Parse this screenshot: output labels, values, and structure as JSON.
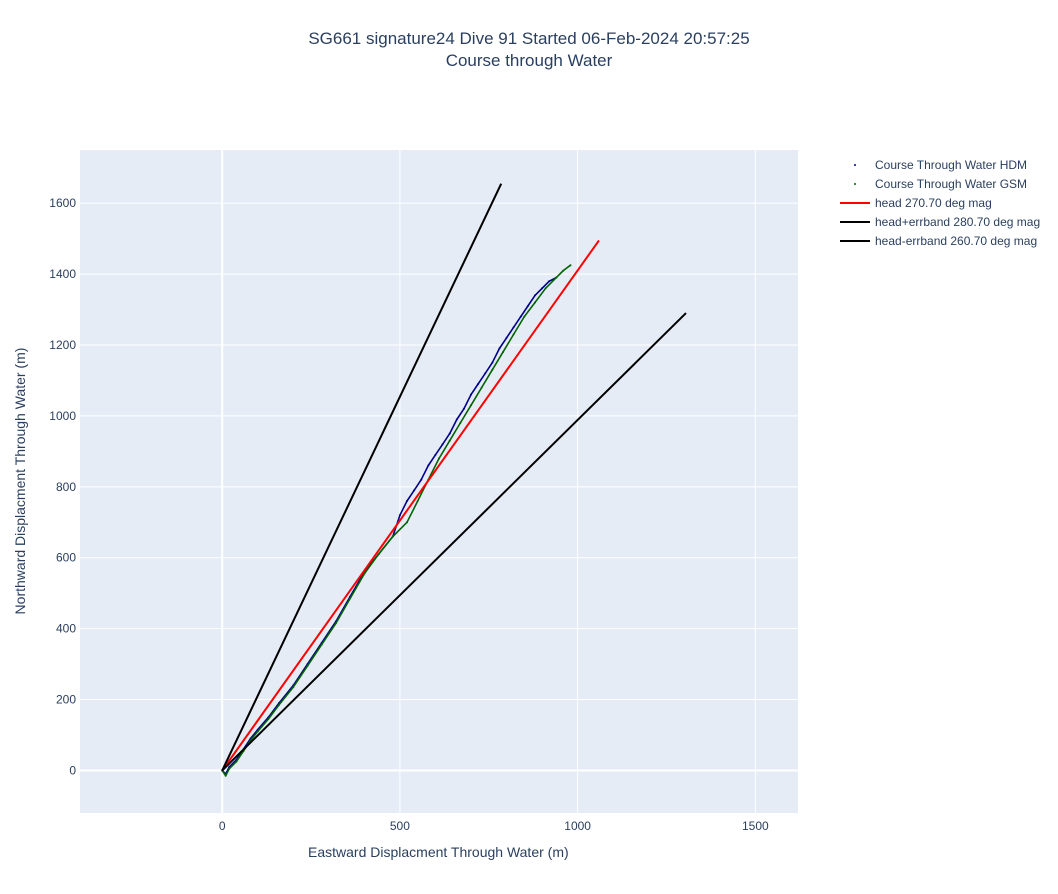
{
  "title": {
    "line1": "SG661 signature24 Dive 91 Started 06-Feb-2024 20:57:25",
    "line2": "Course through Water"
  },
  "chart_data": {
    "type": "scatter",
    "title": "SG661 signature24 Dive 91 Started 06-Feb-2024 20:57:25 / Course through Water",
    "xlabel": "Eastward Displacment Through Water (m)",
    "ylabel": "Northward Displacment Through Water (m)",
    "xlim": [
      -400,
      1620
    ],
    "ylim": [
      -120,
      1750
    ],
    "xticks": [
      0,
      500,
      1000,
      1500
    ],
    "yticks": [
      0,
      200,
      400,
      600,
      800,
      1000,
      1200,
      1400,
      1600
    ],
    "grid": true,
    "legend_position": "top-right",
    "series": [
      {
        "name": "Course Through Water HDM",
        "mode": "markers+path",
        "color": "#00008b",
        "x": [
          0,
          10,
          20,
          40,
          60,
          80,
          100,
          130,
          160,
          200,
          240,
          280,
          320,
          360,
          400,
          440,
          480,
          500,
          520,
          540,
          560,
          580,
          600,
          620,
          640,
          660,
          680,
          700,
          720,
          740,
          760,
          780,
          800,
          820,
          840,
          860,
          880,
          900,
          920,
          940
        ],
        "y": [
          0,
          -10,
          10,
          30,
          60,
          90,
          115,
          150,
          190,
          240,
          300,
          360,
          420,
          490,
          560,
          610,
          660,
          720,
          760,
          790,
          820,
          860,
          890,
          920,
          950,
          990,
          1020,
          1060,
          1090,
          1120,
          1150,
          1190,
          1220,
          1250,
          1280,
          1310,
          1340,
          1360,
          1380,
          1390
        ]
      },
      {
        "name": "Course Through Water GSM",
        "mode": "markers+path",
        "color": "#006400",
        "x": [
          0,
          10,
          20,
          40,
          60,
          80,
          100,
          130,
          160,
          200,
          240,
          280,
          320,
          360,
          400,
          440,
          480,
          520,
          550,
          580,
          610,
          640,
          670,
          700,
          730,
          760,
          790,
          820,
          850,
          880,
          910,
          940,
          960,
          980
        ],
        "y": [
          0,
          -15,
          5,
          25,
          55,
          85,
          110,
          145,
          185,
          235,
          295,
          355,
          415,
          485,
          555,
          610,
          660,
          700,
          760,
          820,
          880,
          930,
          980,
          1030,
          1080,
          1130,
          1180,
          1230,
          1280,
          1320,
          1360,
          1390,
          1410,
          1425
        ]
      },
      {
        "name": "head 270.70 deg mag",
        "mode": "lines",
        "color": "#ff0000",
        "x": [
          0,
          1060
        ],
        "y": [
          0,
          1495
        ]
      },
      {
        "name": "head+errband 280.70 deg mag",
        "mode": "lines",
        "color": "#000000",
        "x": [
          0,
          785
        ],
        "y": [
          0,
          1655
        ]
      },
      {
        "name": "head-errband 260.70 deg mag",
        "mode": "lines",
        "color": "#000000",
        "x": [
          0,
          1305
        ],
        "y": [
          0,
          1290
        ]
      }
    ]
  }
}
